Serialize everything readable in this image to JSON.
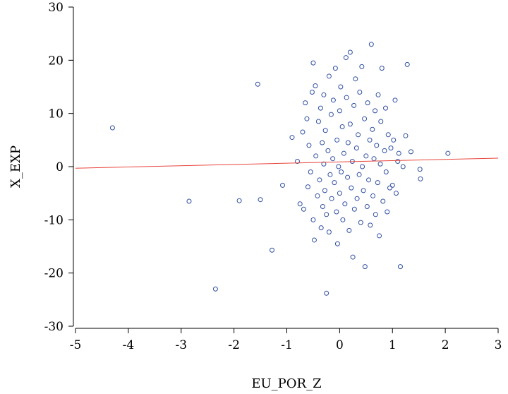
{
  "chart_data": {
    "type": "scatter",
    "xlabel": "EU_POR_Z",
    "ylabel": "X_EXP",
    "xlim": [
      -5,
      3
    ],
    "ylim": [
      -30,
      30
    ],
    "x_ticks": [
      -5,
      -4,
      -3,
      -2,
      -1,
      0,
      1,
      2,
      3
    ],
    "y_ticks": [
      -30,
      -20,
      -10,
      0,
      10,
      20,
      30
    ],
    "x_tick_labels": [
      "-5",
      "-4",
      "-3",
      "-2",
      "-1",
      "0",
      "1",
      "2",
      "3"
    ],
    "y_tick_labels": [
      "-30",
      "-20",
      "-10",
      "0",
      "10",
      "20",
      "30"
    ],
    "grid": false,
    "point_color": "#2f4fa0",
    "fit_line_color": "#e8453c",
    "fit_line": {
      "x": [
        -5,
        3
      ],
      "y": [
        -0.3,
        1.6
      ]
    },
    "points": [
      {
        "x": -4.3,
        "y": 7.3
      },
      {
        "x": -2.85,
        "y": -6.5
      },
      {
        "x": -2.35,
        "y": -23.0
      },
      {
        "x": -1.9,
        "y": -6.4
      },
      {
        "x": -1.55,
        "y": 15.5
      },
      {
        "x": -1.5,
        "y": -6.2
      },
      {
        "x": -1.28,
        "y": -15.7
      },
      {
        "x": -1.08,
        "y": -3.5
      },
      {
        "x": -0.9,
        "y": 5.5
      },
      {
        "x": -0.8,
        "y": 1.0
      },
      {
        "x": -0.75,
        "y": -7.0
      },
      {
        "x": -0.7,
        "y": 6.5
      },
      {
        "x": -0.68,
        "y": -8.0
      },
      {
        "x": -0.65,
        "y": 12.0
      },
      {
        "x": -0.62,
        "y": 9.0
      },
      {
        "x": -0.6,
        "y": -3.8
      },
      {
        "x": -0.58,
        "y": 4.0
      },
      {
        "x": -0.55,
        "y": -1.0
      },
      {
        "x": -0.52,
        "y": 14.0
      },
      {
        "x": -0.5,
        "y": 19.5
      },
      {
        "x": -0.5,
        "y": -10.0
      },
      {
        "x": -0.48,
        "y": -13.8
      },
      {
        "x": -0.46,
        "y": 15.2
      },
      {
        "x": -0.45,
        "y": 2.0
      },
      {
        "x": -0.42,
        "y": -5.5
      },
      {
        "x": -0.4,
        "y": 8.5
      },
      {
        "x": -0.38,
        "y": -2.5
      },
      {
        "x": -0.36,
        "y": 11.0
      },
      {
        "x": -0.35,
        "y": -11.5
      },
      {
        "x": -0.33,
        "y": 4.5
      },
      {
        "x": -0.32,
        "y": -7.5
      },
      {
        "x": -0.3,
        "y": 13.5
      },
      {
        "x": -0.3,
        "y": 0.5
      },
      {
        "x": -0.28,
        "y": -4.5
      },
      {
        "x": -0.27,
        "y": 6.8
      },
      {
        "x": -0.25,
        "y": -9.0
      },
      {
        "x": -0.25,
        "y": -23.8
      },
      {
        "x": -0.22,
        "y": 3.0
      },
      {
        "x": -0.2,
        "y": -12.3
      },
      {
        "x": -0.2,
        "y": 17.0
      },
      {
        "x": -0.18,
        "y": -1.5
      },
      {
        "x": -0.16,
        "y": 9.8
      },
      {
        "x": -0.15,
        "y": -6.0
      },
      {
        "x": -0.13,
        "y": 1.5
      },
      {
        "x": -0.12,
        "y": 12.5
      },
      {
        "x": -0.1,
        "y": -3.0
      },
      {
        "x": -0.08,
        "y": 18.5
      },
      {
        "x": -0.06,
        "y": -8.5
      },
      {
        "x": -0.05,
        "y": 5.0
      },
      {
        "x": -0.04,
        "y": -14.5
      },
      {
        "x": -0.02,
        "y": 0.0
      },
      {
        "x": 0.0,
        "y": 10.5
      },
      {
        "x": 0.0,
        "y": -5.0
      },
      {
        "x": 0.02,
        "y": 15.0
      },
      {
        "x": 0.03,
        "y": -1.0
      },
      {
        "x": 0.05,
        "y": 7.5
      },
      {
        "x": 0.06,
        "y": -10.0
      },
      {
        "x": 0.08,
        "y": 2.5
      },
      {
        "x": 0.1,
        "y": -7.0
      },
      {
        "x": 0.12,
        "y": 20.5
      },
      {
        "x": 0.13,
        "y": 13.0
      },
      {
        "x": 0.15,
        "y": -2.0
      },
      {
        "x": 0.16,
        "y": 4.5
      },
      {
        "x": 0.18,
        "y": -12.0
      },
      {
        "x": 0.2,
        "y": 21.5
      },
      {
        "x": 0.2,
        "y": 8.0
      },
      {
        "x": 0.22,
        "y": -4.0
      },
      {
        "x": 0.24,
        "y": 1.0
      },
      {
        "x": 0.25,
        "y": -17.0
      },
      {
        "x": 0.27,
        "y": 11.5
      },
      {
        "x": 0.28,
        "y": -8.0
      },
      {
        "x": 0.3,
        "y": 16.5
      },
      {
        "x": 0.32,
        "y": 3.5
      },
      {
        "x": 0.33,
        "y": -6.0
      },
      {
        "x": 0.35,
        "y": 6.0
      },
      {
        "x": 0.37,
        "y": -1.5
      },
      {
        "x": 0.38,
        "y": 14.0
      },
      {
        "x": 0.4,
        "y": -10.5
      },
      {
        "x": 0.42,
        "y": 18.8
      },
      {
        "x": 0.43,
        "y": 0.0
      },
      {
        "x": 0.45,
        "y": -4.5
      },
      {
        "x": 0.47,
        "y": 9.0
      },
      {
        "x": 0.48,
        "y": -18.8
      },
      {
        "x": 0.5,
        "y": 2.0
      },
      {
        "x": 0.52,
        "y": -7.5
      },
      {
        "x": 0.53,
        "y": 12.0
      },
      {
        "x": 0.55,
        "y": -2.5
      },
      {
        "x": 0.57,
        "y": 5.0
      },
      {
        "x": 0.58,
        "y": -11.0
      },
      {
        "x": 0.6,
        "y": 23.0
      },
      {
        "x": 0.62,
        "y": 7.0
      },
      {
        "x": 0.63,
        "y": -5.5
      },
      {
        "x": 0.65,
        "y": 1.5
      },
      {
        "x": 0.67,
        "y": 10.5
      },
      {
        "x": 0.68,
        "y": -9.0
      },
      {
        "x": 0.7,
        "y": 4.0
      },
      {
        "x": 0.72,
        "y": -3.0
      },
      {
        "x": 0.73,
        "y": 13.5
      },
      {
        "x": 0.75,
        "y": -13.0
      },
      {
        "x": 0.77,
        "y": 0.5
      },
      {
        "x": 0.78,
        "y": 8.5
      },
      {
        "x": 0.8,
        "y": 18.5
      },
      {
        "x": 0.82,
        "y": -6.5
      },
      {
        "x": 0.85,
        "y": 3.0
      },
      {
        "x": 0.87,
        "y": 11.0
      },
      {
        "x": 0.88,
        "y": -1.0
      },
      {
        "x": 0.9,
        "y": -8.5
      },
      {
        "x": 0.92,
        "y": 6.0
      },
      {
        "x": 0.95,
        "y": -4.0
      },
      {
        "x": 0.97,
        "y": 3.5
      },
      {
        "x": 1.0,
        "y": -3.5
      },
      {
        "x": 1.02,
        "y": 5.0
      },
      {
        "x": 1.05,
        "y": 12.5
      },
      {
        "x": 1.07,
        "y": -5.0
      },
      {
        "x": 1.1,
        "y": 1.0
      },
      {
        "x": 1.12,
        "y": 2.5
      },
      {
        "x": 1.15,
        "y": -18.8
      },
      {
        "x": 1.2,
        "y": 0.0
      },
      {
        "x": 1.25,
        "y": 5.8
      },
      {
        "x": 1.28,
        "y": 19.2
      },
      {
        "x": 1.35,
        "y": 2.8
      },
      {
        "x": 1.52,
        "y": -0.5
      },
      {
        "x": 1.53,
        "y": -2.3
      },
      {
        "x": 2.05,
        "y": 2.5
      }
    ]
  }
}
